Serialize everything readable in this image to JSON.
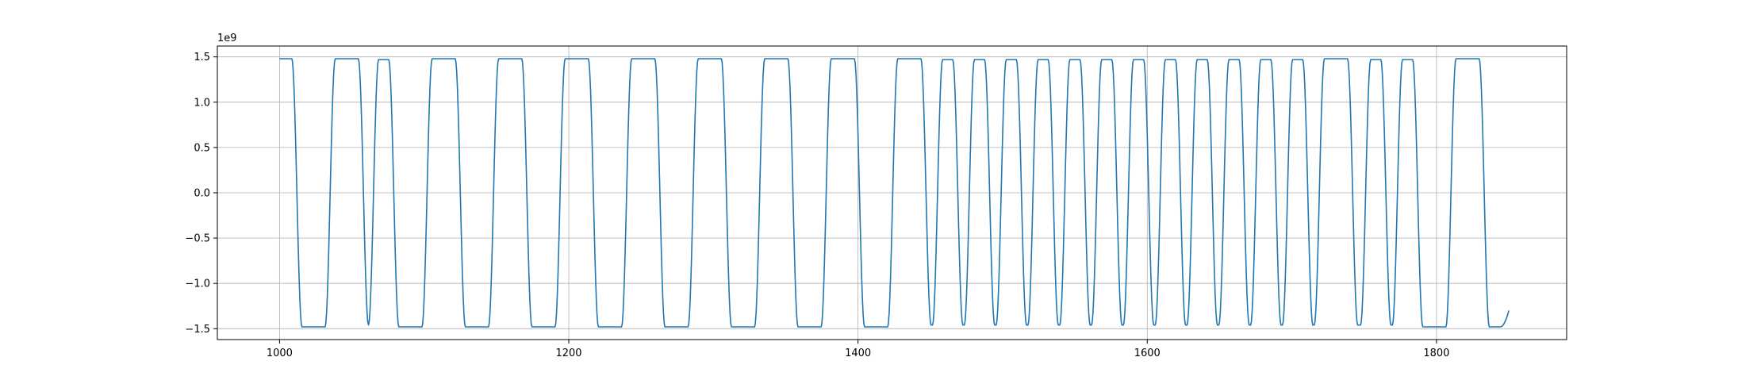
{
  "chart_data": {
    "type": "line",
    "title": "",
    "xlabel": "",
    "ylabel": "",
    "y_offset_label": "1e9",
    "xlim": [
      957,
      1890
    ],
    "ylim": [
      -1.62,
      1.62
    ],
    "y_scale_factor": 1000000000,
    "grid": true,
    "x_ticks": [
      {
        "value": 1000,
        "label": "1000"
      },
      {
        "value": 1200,
        "label": "1200"
      },
      {
        "value": 1400,
        "label": "1400"
      },
      {
        "value": 1600,
        "label": "1600"
      },
      {
        "value": 1800,
        "label": "1800"
      }
    ],
    "y_ticks": [
      {
        "value": 1.5,
        "label": "1.5"
      },
      {
        "value": 1.0,
        "label": "1.0"
      },
      {
        "value": 0.5,
        "label": "0.5"
      },
      {
        "value": 0.0,
        "label": "0.0"
      },
      {
        "value": -0.5,
        "label": "−0.5"
      },
      {
        "value": -1.0,
        "label": "−1.0"
      },
      {
        "value": -1.5,
        "label": "−1.5"
      }
    ],
    "series": [
      {
        "color": "#1f77b4",
        "x_start": 1000,
        "x_end": 1850,
        "x_last_point": 1850,
        "y_last_point": -1.3,
        "y_high": 1.48,
        "y_low": -1.48,
        "y_peak_narrow": 1.47,
        "y_trough_narrow": -1.46,
        "start_level": 1.48,
        "transitions_x": [
          1012,
          1035,
          1058,
          1065,
          1079,
          1102,
          1125,
          1148,
          1171,
          1194,
          1217,
          1240,
          1263,
          1286,
          1309,
          1332,
          1355,
          1378,
          1401,
          1424,
          1447,
          1455,
          1469,
          1477,
          1491,
          1499,
          1513,
          1521,
          1535,
          1543,
          1557,
          1565,
          1579,
          1587,
          1601,
          1609,
          1623,
          1631,
          1645,
          1653,
          1667,
          1675,
          1689,
          1697,
          1711,
          1719,
          1742,
          1751,
          1765,
          1773,
          1787,
          1810,
          1833
        ]
      }
    ]
  }
}
